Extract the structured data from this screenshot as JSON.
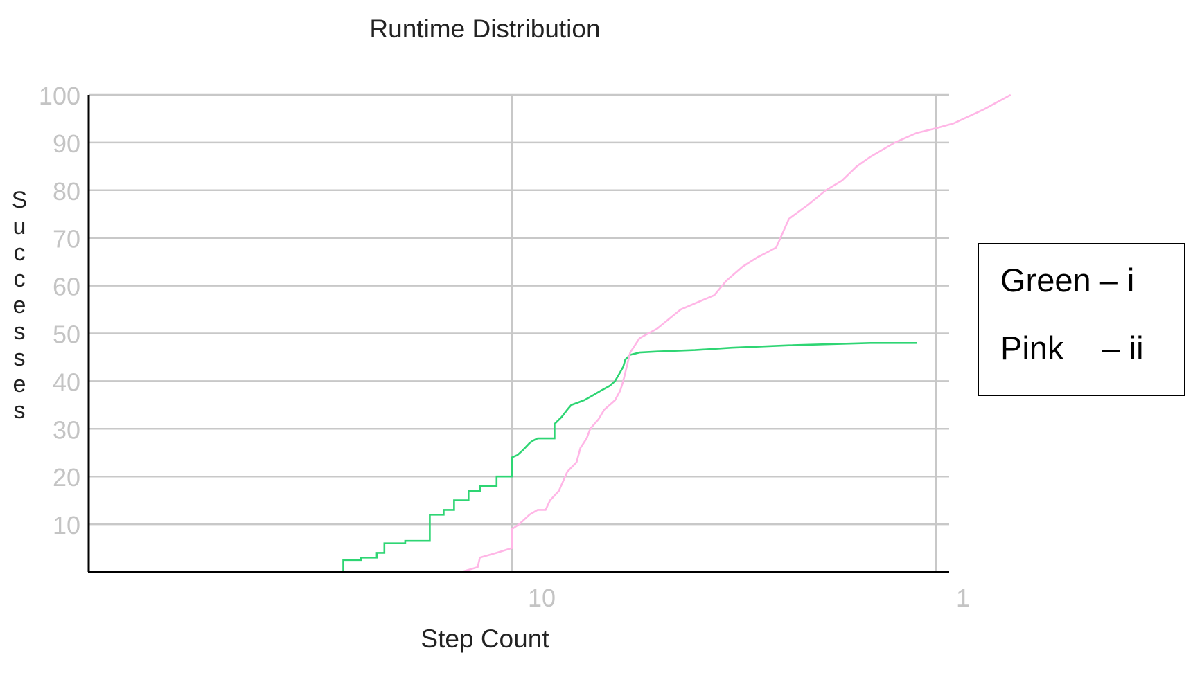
{
  "chart_data": {
    "type": "line",
    "title": "Runtime Distribution",
    "xlabel": "Step Count",
    "ylabel": "Successes",
    "x_ticks": [
      "10",
      "1"
    ],
    "y_ticks": [
      "10",
      "20",
      "30",
      "40",
      "50",
      "60",
      "70",
      "80",
      "90",
      "100"
    ],
    "ylim": [
      0,
      100
    ],
    "grid": true,
    "legend": {
      "position": "right",
      "entries": [
        {
          "color_name": "Green",
          "dash": "–",
          "label": "i"
        },
        {
          "color_name": "Pink",
          "dash": "–",
          "label": "ii"
        }
      ]
    },
    "series": [
      {
        "color": "#2ed573",
        "x": [
          4.0,
          4.0,
          4.4,
          4.4,
          4.8,
          4.8,
          5.0,
          5.0,
          5.6,
          5.6,
          6.4,
          6.4,
          6.9,
          6.9,
          7.3,
          7.3,
          7.9,
          7.9,
          8.4,
          8.4,
          9.2,
          9.2,
          10.0,
          10.0,
          10.3,
          10.6,
          11.0,
          11.2,
          11.5,
          12.0,
          12.6,
          12.6,
          13.1,
          13.5,
          13.8,
          14.3,
          14.8,
          15.5,
          16.2,
          17.0,
          17.5,
          17.9,
          18.3,
          18.5,
          19.0,
          20.0,
          22.0,
          27.0,
          33.0,
          45.0,
          70.0,
          90.0
        ],
        "y": [
          0,
          2.5,
          2.5,
          3.0,
          3.0,
          4.0,
          4.0,
          6.0,
          6.0,
          6.5,
          6.5,
          12.0,
          12.0,
          13.0,
          13.0,
          15.0,
          15.0,
          17.0,
          17.0,
          18.0,
          18.0,
          20.0,
          20.0,
          24.0,
          24.5,
          25.5,
          27.0,
          27.5,
          28.0,
          28.0,
          28.0,
          31.0,
          32.5,
          34.0,
          35.0,
          35.5,
          36.0,
          37.0,
          38.0,
          39.0,
          40.0,
          41.5,
          43.0,
          44.5,
          45.5,
          46.0,
          46.2,
          46.5,
          47.0,
          47.5,
          48.0,
          48.0
        ]
      },
      {
        "color": "#ffb6e6",
        "x": [
          7.0,
          7.6,
          8.3,
          8.4,
          9.2,
          10.0,
          10.0,
          10.4,
          11.0,
          11.5,
          12.0,
          12.3,
          12.9,
          13.2,
          13.5,
          14.2,
          14.5,
          15.0,
          15.3,
          16.0,
          16.5,
          17.0,
          17.5,
          18.0,
          18.3,
          19.0,
          20.0,
          22.0,
          25.0,
          30.0,
          32.0,
          35.0,
          38.0,
          40.0,
          42.0,
          45.0,
          50.0,
          55.0,
          60.0,
          65.0,
          70.0,
          80.0,
          90.0,
          100.0,
          110.0,
          130.0,
          150.0
        ],
        "y": [
          0,
          0,
          1.0,
          3.0,
          4.0,
          5.0,
          9.0,
          10.0,
          12.0,
          13.0,
          13.0,
          15.0,
          17.0,
          19.0,
          21.0,
          23.0,
          26.0,
          28.0,
          30.0,
          32.0,
          34.0,
          35.0,
          36.0,
          38.0,
          40.0,
          46.0,
          49.0,
          51.0,
          55.0,
          58.0,
          61.0,
          64.0,
          66.0,
          67.0,
          68.0,
          74.0,
          77.0,
          80.0,
          82.0,
          85.0,
          87.0,
          90.0,
          92.0,
          93.0,
          94.0,
          97.0,
          100.0
        ]
      }
    ]
  }
}
